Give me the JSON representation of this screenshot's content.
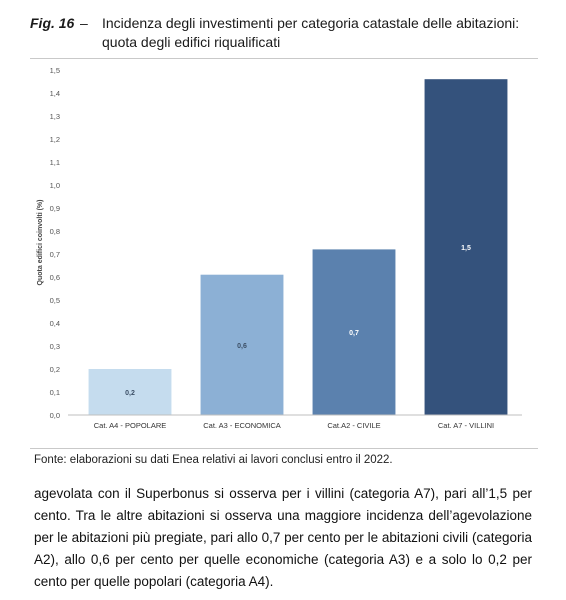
{
  "figure": {
    "label": "Fig. 16",
    "dash": "–",
    "title": "Incidenza degli investimenti per categoria catastale delle abitazioni: quota degli edifici riqualificati"
  },
  "source": "Fonte: elaborazioni su dati Enea relativi ai lavori conclusi entro il 2022.",
  "body_text": "agevolata con il Superbonus si osserva per i villini (categoria A7), pari all’1,5 per cento. Tra le altre abitazioni si osserva una maggiore incidenza dell’agevolazione per le abitazioni più pregiate, pari allo 0,7 per cento per le abitazioni civili (categoria A2), allo 0,6 per cento per quelle economiche (categoria A3) e a solo lo 0,2 per cento per quelle popolari (categoria A4).",
  "chart_data": {
    "type": "bar",
    "title": "",
    "xlabel": "",
    "ylabel": "Quota edifici coinvolti (%)",
    "categories": [
      "Cat. A4 - POPOLARE",
      "Cat. A3 - ECONOMICA",
      "Cat.A2 - CIVILE",
      "Cat. A7 - VILLINI"
    ],
    "values": [
      0.2,
      0.61,
      0.72,
      1.46
    ],
    "data_labels": [
      "0,2",
      "0,6",
      "0,7",
      "1,5"
    ],
    "colors": [
      "#c5dcee",
      "#8cb0d5",
      "#5b81ae",
      "#34527c"
    ],
    "ylim": [
      0,
      1.5
    ],
    "yticks": [
      0,
      0.1,
      0.2,
      0.3,
      0.4,
      0.5,
      0.6,
      0.7,
      0.8,
      0.9,
      1.0,
      1.1,
      1.2,
      1.3,
      1.4,
      1.5
    ],
    "ytick_labels": [
      "0,0",
      "0,1",
      "0,2",
      "0,3",
      "0,4",
      "0,5",
      "0,6",
      "0,7",
      "0,8",
      "0,9",
      "1,0",
      "1,1",
      "1,2",
      "1,3",
      "1,4",
      "1,5"
    ],
    "grid": false,
    "legend": "none"
  }
}
